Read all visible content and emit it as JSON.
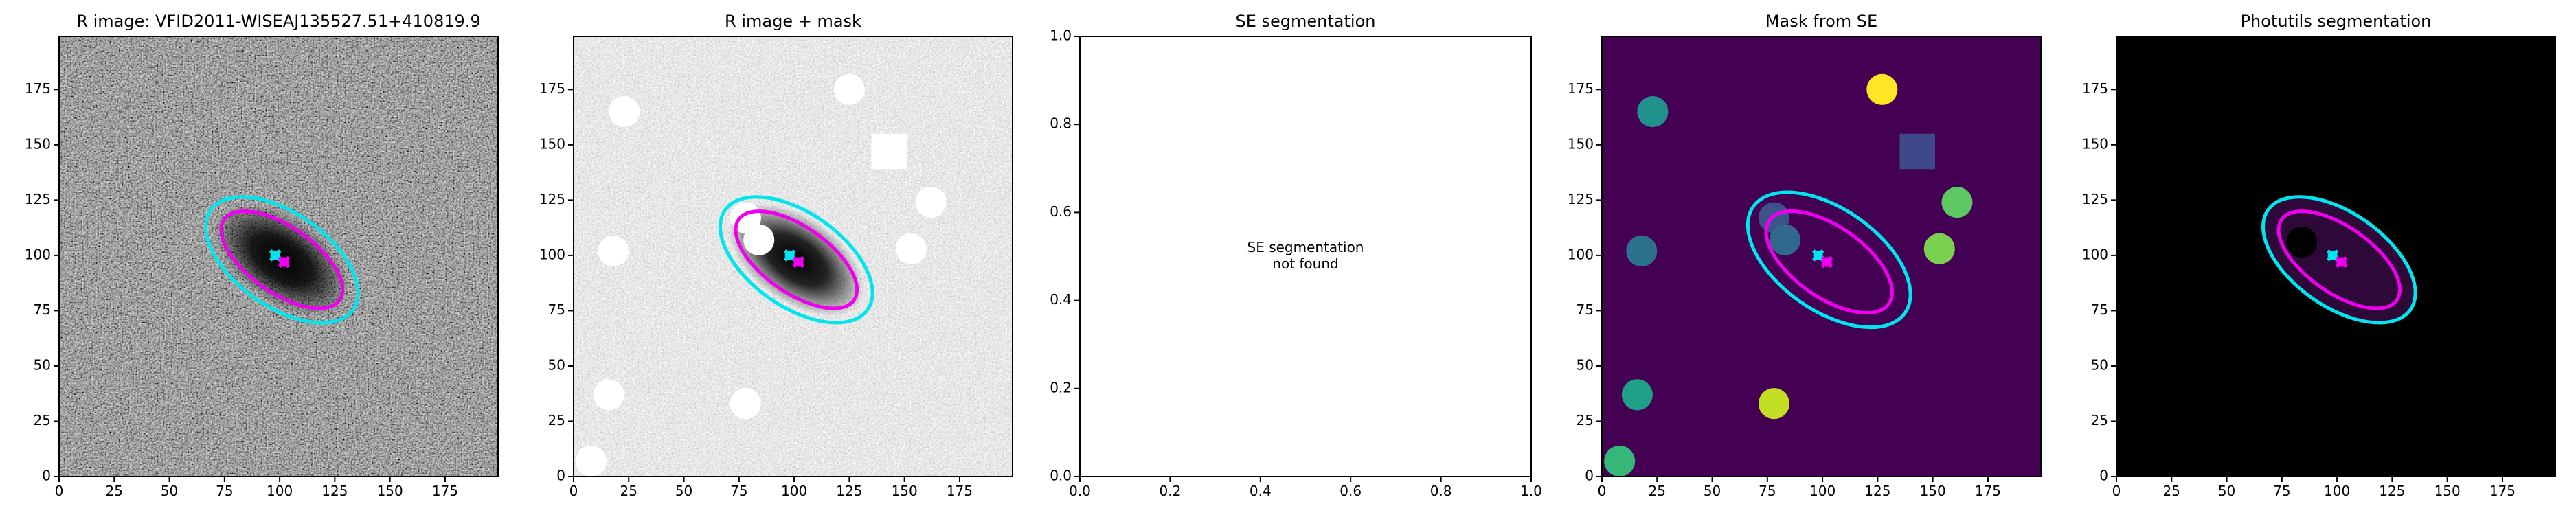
{
  "chart_data": [
    {
      "type": "image",
      "style": "gray",
      "title": "R image: VFID2011-WISEAJ135527.51+410819.9",
      "xlim": [
        0,
        199
      ],
      "ylim": [
        0,
        199
      ],
      "xticks": [
        0,
        25,
        50,
        75,
        100,
        125,
        150,
        175
      ],
      "yticks": [
        0,
        25,
        50,
        75,
        100,
        125,
        150,
        175
      ],
      "ellipses": [
        {
          "color": "#00e5ee",
          "x": 101,
          "y": 98,
          "a": 39.4,
          "b": 21.2,
          "angle": -35
        },
        {
          "color": "#ee00ee",
          "x": 101,
          "y": 98,
          "a": 31.9,
          "b": 14.9,
          "angle": -35
        }
      ],
      "markers": [
        {
          "color": "#00e5ee",
          "x": 98,
          "y": 100
        },
        {
          "color": "#ee00ee",
          "x": 102,
          "y": 97
        }
      ]
    },
    {
      "type": "image",
      "style": "gray_r",
      "title": "R image + mask",
      "mask_color": "#ffffff",
      "xlim": [
        0,
        199
      ],
      "ylim": [
        0,
        199
      ],
      "xticks": [
        0,
        25,
        50,
        75,
        100,
        125,
        150,
        175
      ],
      "yticks": [
        0,
        25,
        50,
        75,
        100,
        125,
        150,
        175
      ],
      "masks": [
        {
          "shape": "circle",
          "x": 125,
          "y": 175,
          "r": 7
        },
        {
          "shape": "circle",
          "x": 23,
          "y": 165,
          "r": 7
        },
        {
          "shape": "square",
          "x": 143,
          "y": 147,
          "r": 8
        },
        {
          "shape": "circle",
          "x": 162,
          "y": 124,
          "r": 7
        },
        {
          "shape": "circle",
          "x": 153,
          "y": 103,
          "r": 7
        },
        {
          "shape": "circle",
          "x": 18,
          "y": 102,
          "r": 7
        },
        {
          "shape": "circle",
          "x": 78,
          "y": 117,
          "r": 7
        },
        {
          "shape": "circle",
          "x": 84,
          "y": 107,
          "r": 7
        },
        {
          "shape": "circle",
          "x": 16,
          "y": 37,
          "r": 7
        },
        {
          "shape": "circle",
          "x": 78,
          "y": 33,
          "r": 7
        },
        {
          "shape": "circle",
          "x": 8,
          "y": 7,
          "r": 7
        }
      ],
      "ellipses": [
        {
          "color": "#00e5ee",
          "x": 101,
          "y": 98,
          "a": 39.4,
          "b": 21.2,
          "angle": -35
        },
        {
          "color": "#ee00ee",
          "x": 101,
          "y": 98,
          "a": 31.9,
          "b": 14.9,
          "angle": -35
        }
      ],
      "markers": [
        {
          "color": "#00e5ee",
          "x": 98,
          "y": 100
        },
        {
          "color": "#ee00ee",
          "x": 102,
          "y": 97
        }
      ]
    },
    {
      "type": "text",
      "title": "SE segmentation",
      "annotation": [
        "SE segmentation",
        "not found"
      ],
      "xlim": [
        0,
        1
      ],
      "ylim": [
        0,
        1
      ],
      "xticks": [
        {
          "value": 0,
          "label": "0.0"
        },
        {
          "value": 0.2,
          "label": "0.2"
        },
        {
          "value": 0.4,
          "label": "0.4"
        },
        {
          "value": 0.6,
          "label": "0.6"
        },
        {
          "value": 0.8,
          "label": "0.8"
        },
        {
          "value": 1,
          "label": "1.0"
        }
      ],
      "yticks": [
        {
          "value": 0,
          "label": "0.0"
        },
        {
          "value": 0.2,
          "label": "0.2"
        },
        {
          "value": 0.4,
          "label": "0.4"
        },
        {
          "value": 0.6,
          "label": "0.6"
        },
        {
          "value": 0.8,
          "label": "0.8"
        },
        {
          "value": 1,
          "label": "1.0"
        }
      ]
    },
    {
      "type": "image",
      "style": "viridis",
      "title": "Mask from SE",
      "background": "#440154",
      "xlim": [
        0,
        199
      ],
      "ylim": [
        0,
        199
      ],
      "xticks": [
        0,
        25,
        50,
        75,
        100,
        125,
        150,
        175
      ],
      "yticks": [
        0,
        25,
        50,
        75,
        100,
        125,
        150,
        175
      ],
      "masks": [
        {
          "shape": "circle",
          "x": 127,
          "y": 175,
          "r": 7,
          "color": "#fde725"
        },
        {
          "shape": "circle",
          "x": 23,
          "y": 165,
          "r": 7,
          "color": "#21918c"
        },
        {
          "shape": "square",
          "x": 143,
          "y": 147,
          "r": 8,
          "color": "#3e4989"
        },
        {
          "shape": "circle",
          "x": 161,
          "y": 124,
          "r": 7,
          "color": "#5ec962"
        },
        {
          "shape": "circle",
          "x": 153,
          "y": 103,
          "r": 7,
          "color": "#7ad151"
        },
        {
          "shape": "circle",
          "x": 18,
          "y": 102,
          "r": 7,
          "color": "#2c728e"
        },
        {
          "shape": "circle",
          "x": 78,
          "y": 117,
          "r": 7,
          "color": "#3b528b"
        },
        {
          "shape": "circle",
          "x": 83,
          "y": 107,
          "r": 7,
          "color": "#31688e"
        },
        {
          "shape": "circle",
          "x": 16,
          "y": 37,
          "r": 7,
          "color": "#1fa187"
        },
        {
          "shape": "circle",
          "x": 78,
          "y": 33,
          "r": 7,
          "color": "#c2df23"
        },
        {
          "shape": "circle",
          "x": 8,
          "y": 7,
          "r": 7,
          "color": "#35b779"
        }
      ],
      "ellipses": [
        {
          "color": "#00e5ee",
          "x": 103,
          "y": 98,
          "a": 42,
          "b": 23,
          "angle": -35
        },
        {
          "color": "#ee00ee",
          "x": 103,
          "y": 97,
          "a": 33,
          "b": 16,
          "angle": -35
        }
      ],
      "markers": [
        {
          "color": "#00e5ee",
          "x": 98,
          "y": 100
        },
        {
          "color": "#ee00ee",
          "x": 102,
          "y": 97
        }
      ]
    },
    {
      "type": "image",
      "style": "segmentation",
      "title": "Photutils segmentation",
      "background": "#000000",
      "segment_color": "#2e0838",
      "mask_color": "#000000",
      "xlim": [
        0,
        199
      ],
      "ylim": [
        0,
        199
      ],
      "xticks": [
        0,
        25,
        50,
        75,
        100,
        125,
        150,
        175
      ],
      "yticks": [
        0,
        25,
        50,
        75,
        100,
        125,
        150,
        175
      ],
      "masks": [
        {
          "shape": "circle",
          "x": 84,
          "y": 106,
          "r": 7
        }
      ],
      "ellipses": [
        {
          "color": "#00e5ee",
          "x": 101,
          "y": 98,
          "a": 39.4,
          "b": 21.2,
          "angle": -35
        },
        {
          "color": "#ee00ee",
          "x": 101,
          "y": 98,
          "a": 31.9,
          "b": 14.9,
          "angle": -35
        }
      ],
      "markers": [
        {
          "color": "#00e5ee",
          "x": 98,
          "y": 100
        },
        {
          "color": "#ee00ee",
          "x": 102,
          "y": 97
        }
      ]
    }
  ]
}
